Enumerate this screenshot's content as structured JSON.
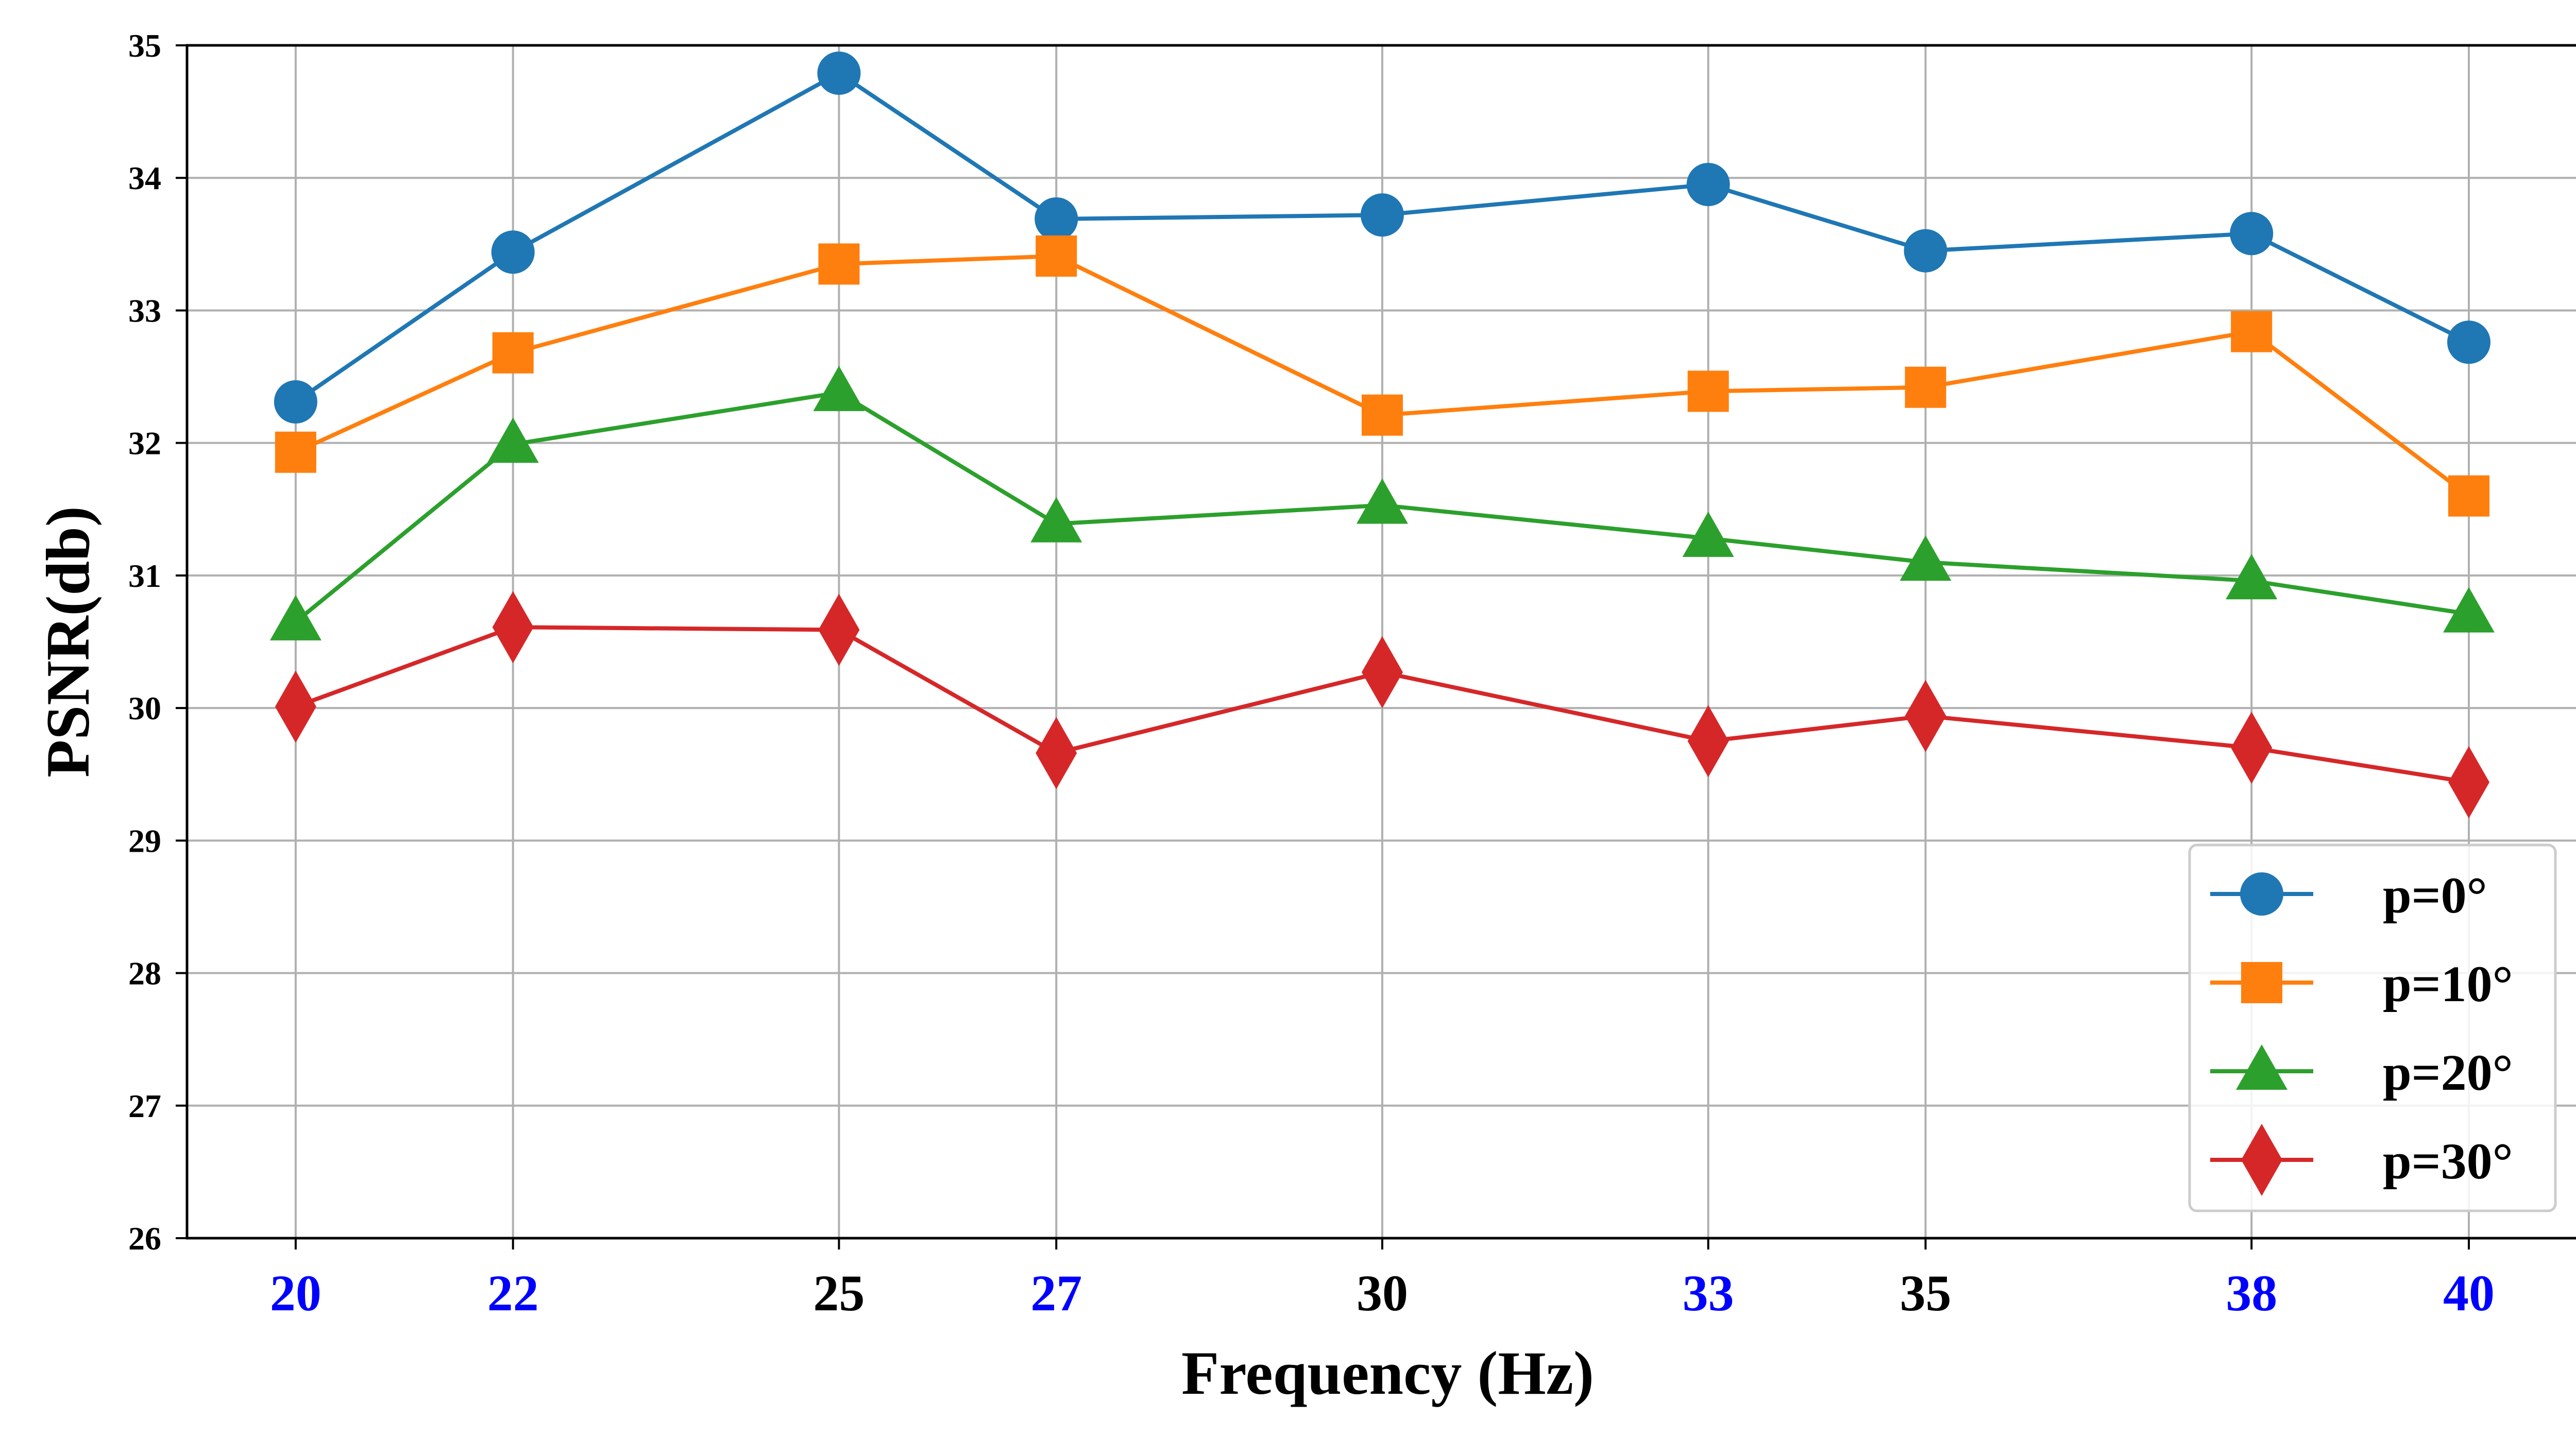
{
  "chart_data": {
    "type": "line",
    "title": "",
    "xlabel": "Frequency (Hz)",
    "ylabel": "PSNR(db)",
    "x": [
      20,
      22,
      25,
      27,
      30,
      33,
      35,
      38,
      40
    ],
    "xtick_labels": [
      "20",
      "22",
      "25",
      "27",
      "30",
      "33",
      "35",
      "38",
      "40"
    ],
    "xtick_colors": [
      "#0000ff",
      "#0000ff",
      "#000000",
      "#0000ff",
      "#000000",
      "#0000ff",
      "#000000",
      "#0000ff",
      "#0000ff"
    ],
    "xlim": [
      19,
      41.1
    ],
    "ylim": [
      26,
      35
    ],
    "yticks": [
      26,
      27,
      28,
      29,
      30,
      31,
      32,
      33,
      34,
      35
    ],
    "ytick_labels": [
      "26",
      "27",
      "28",
      "29",
      "30",
      "31",
      "32",
      "33",
      "34",
      "35"
    ],
    "grid": true,
    "legend_position": "lower-right",
    "series": [
      {
        "name": "p=0°",
        "color": "#1f77b4",
        "marker": "circle",
        "values": [
          32.31,
          33.44,
          34.79,
          33.69,
          33.72,
          33.95,
          33.45,
          33.58,
          32.76
        ]
      },
      {
        "name": "p=10°",
        "color": "#ff7f0e",
        "marker": "square",
        "values": [
          31.93,
          32.68,
          33.35,
          33.41,
          32.21,
          32.39,
          32.42,
          32.84,
          31.6
        ]
      },
      {
        "name": "p=20°",
        "color": "#2ca02c",
        "marker": "triangle",
        "values": [
          30.65,
          31.99,
          32.38,
          31.39,
          31.53,
          31.28,
          31.1,
          30.96,
          30.71
        ]
      },
      {
        "name": "p=30°",
        "color": "#d62728",
        "marker": "diamond",
        "values": [
          30.01,
          30.61,
          30.59,
          29.66,
          30.27,
          29.75,
          29.94,
          29.7,
          29.44
        ]
      }
    ]
  }
}
